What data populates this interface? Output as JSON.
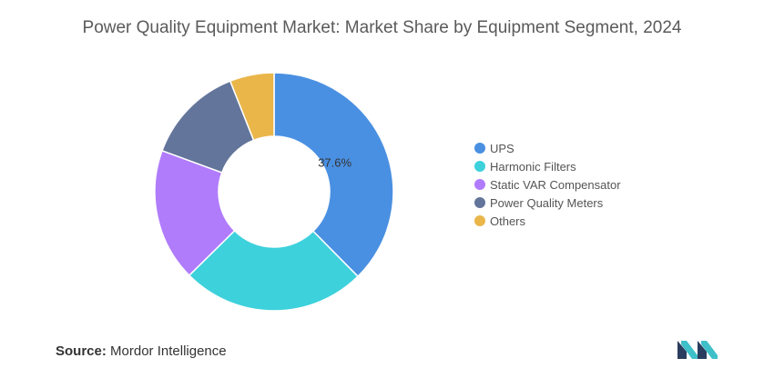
{
  "title": "Power Quality Equipment Market: Market Share by Equipment Segment, 2024",
  "chart_data": {
    "type": "pie",
    "variant": "donut",
    "title": "Power Quality Equipment Market: Market Share by Equipment Segment, 2024",
    "categories": [
      "UPS",
      "Harmonic Filters",
      "Static VAR Compensator",
      "Power Quality Meters",
      "Others"
    ],
    "values": [
      37.6,
      25.0,
      18.0,
      13.4,
      6.0
    ],
    "colors": [
      "#4a90e2",
      "#3dd1dc",
      "#b07cfb",
      "#63759a",
      "#eab64a"
    ],
    "data_labels": [
      "37.6%",
      "",
      "",
      "",
      ""
    ],
    "legend_position": "right"
  },
  "legend": {
    "items": [
      {
        "label": "UPS",
        "color": "#4a90e2"
      },
      {
        "label": "Harmonic Filters",
        "color": "#3dd1dc"
      },
      {
        "label": "Static VAR Compensator",
        "color": "#b07cfb"
      },
      {
        "label": "Power Quality Meters",
        "color": "#63759a"
      },
      {
        "label": "Others",
        "color": "#eab64a"
      }
    ]
  },
  "source": {
    "label": "Source:",
    "text": "Mordor Intelligence"
  },
  "logo": {
    "icon": "mordor-intelligence-logo-icon",
    "colors": [
      "#2a3d5e",
      "#3fc0c9"
    ]
  }
}
